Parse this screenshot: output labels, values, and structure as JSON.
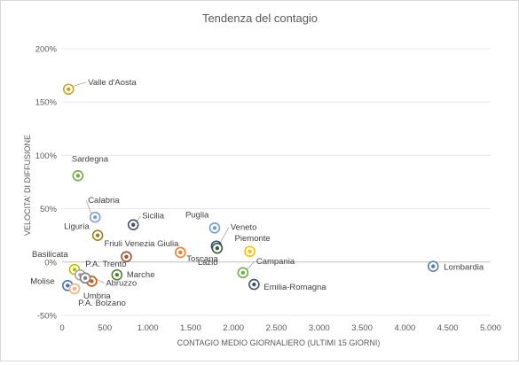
{
  "chart_data": {
    "type": "scatter",
    "title": "Tendenza del contagio",
    "xlabel": "CONTAGIO MEDIO GIORNALIERO (ULTIMI 15 GIORNI)",
    "ylabel": "VELOCITA' DI DIFFUSIONE",
    "xlim": [
      0,
      5000
    ],
    "ylim": [
      -50,
      200
    ],
    "x_ticks": [
      "0",
      "500",
      "1.000",
      "1.500",
      "2.000",
      "2.500",
      "3.000",
      "3.500",
      "4.000",
      "4.500",
      "5.000"
    ],
    "y_ticks": [
      "-50%",
      "0%",
      "50%",
      "100%",
      "150%",
      "200%"
    ],
    "grid": "horizontal",
    "legend": "none",
    "points": [
      {
        "label": "Valle d'Aosta",
        "x": 75,
        "y": 162,
        "color": "#c9a227"
      },
      {
        "label": "Sardegna",
        "x": 185,
        "y": 81,
        "color": "#70ad47"
      },
      {
        "label": "Calabria",
        "x": 385,
        "y": 42,
        "color": "#7f9fd0"
      },
      {
        "label": "Liguria",
        "x": 415,
        "y": 25,
        "color": "#a08020"
      },
      {
        "label": "Sicilia",
        "x": 830,
        "y": 35,
        "color": "#44546a"
      },
      {
        "label": "Puglia",
        "x": 1780,
        "y": 32,
        "color": "#6f9fd8"
      },
      {
        "label": "Veneto",
        "x": 1800,
        "y": 15,
        "color": "#2f4f7f"
      },
      {
        "label": "Lazio",
        "x": 1810,
        "y": 13,
        "color": "#3a5a40"
      },
      {
        "label": "Piemonte",
        "x": 2190,
        "y": 10,
        "color": "#ffc000"
      },
      {
        "label": "Friuli Venezia Giulia",
        "x": 750,
        "y": 5,
        "color": "#a0522d"
      },
      {
        "label": "Toscana",
        "x": 1380,
        "y": 9,
        "color": "#ed7d31"
      },
      {
        "label": "Basilicata",
        "x": 145,
        "y": -7,
        "color": "#bfbf00"
      },
      {
        "label": "P.A. Trento",
        "x": 210,
        "y": -12,
        "color": "#a5a5a5"
      },
      {
        "label": "Marche",
        "x": 640,
        "y": -12,
        "color": "#507e32"
      },
      {
        "label": "Abruzzo",
        "x": 345,
        "y": -18,
        "color": "#c55a11"
      },
      {
        "label": "Molise",
        "x": 65,
        "y": -22,
        "color": "#4472c4"
      },
      {
        "label": "Umbria",
        "x": 145,
        "y": -25,
        "color": "#f4b183"
      },
      {
        "label": "P.A. Bolzano",
        "x": 270,
        "y": -15,
        "color": "#7f7f7f"
      },
      {
        "label": "Campania",
        "x": 2110,
        "y": -10,
        "color": "#70ad47"
      },
      {
        "label": "Emilia-Romagna",
        "x": 2240,
        "y": -21,
        "color": "#44546a"
      },
      {
        "label": "Lombardia",
        "x": 4330,
        "y": -4,
        "color": "#5b7fa8"
      }
    ]
  }
}
